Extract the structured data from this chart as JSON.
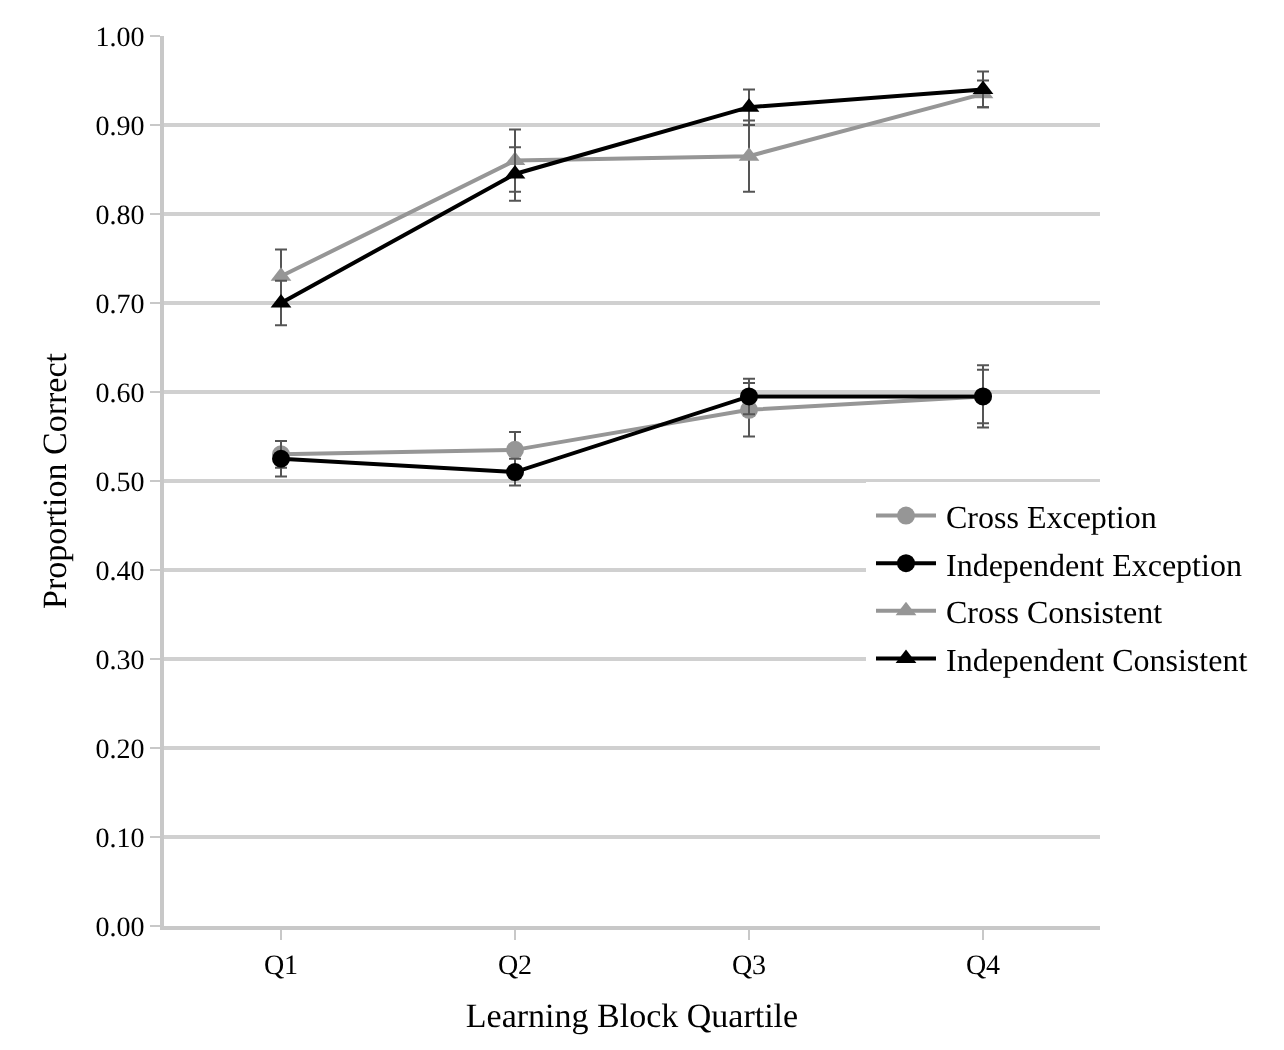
{
  "chart_data": {
    "type": "line",
    "xlabel": "Learning Block Quartile",
    "ylabel": "Proportion Correct",
    "categories": [
      "Q1",
      "Q2",
      "Q3",
      "Q4"
    ],
    "ylim": [
      0,
      1
    ],
    "yticks": [
      {
        "value": 0,
        "label": "0.00"
      },
      {
        "value": 0.1,
        "label": "0.10"
      },
      {
        "value": 0.2,
        "label": "0.20"
      },
      {
        "value": 0.3,
        "label": "0.30"
      },
      {
        "value": 0.4,
        "label": "0.40"
      },
      {
        "value": 0.5,
        "label": "0.50"
      },
      {
        "value": 0.6,
        "label": "0.60"
      },
      {
        "value": 0.7,
        "label": "0.70"
      },
      {
        "value": 0.8,
        "label": "0.80"
      },
      {
        "value": 0.9,
        "label": "0.90"
      },
      {
        "value": 1,
        "label": "1.00"
      }
    ],
    "grid": "y",
    "legend": "right",
    "line_style": "solid",
    "series": [
      {
        "name": "Cross Exception",
        "color": "#969696",
        "marker": "circle",
        "values": [
          0.53,
          0.535,
          0.58,
          0.595
        ],
        "errors": [
          0.015,
          0.02,
          0.03,
          0.03
        ]
      },
      {
        "name": "Independent Exception",
        "color": "#000000",
        "marker": "circle",
        "values": [
          0.525,
          0.51,
          0.595,
          0.595
        ],
        "errors": [
          0.02,
          0.015,
          0.02,
          0.035
        ]
      },
      {
        "name": "Cross Consistent",
        "color": "#969696",
        "marker": "triangle",
        "values": [
          0.73,
          0.86,
          0.865,
          0.935
        ],
        "errors": [
          0.03,
          0.035,
          0.04,
          0.015
        ]
      },
      {
        "name": "Independent Consistent",
        "color": "#000000",
        "marker": "triangle",
        "values": [
          0.7,
          0.845,
          0.92,
          0.94
        ],
        "errors": [
          0.025,
          0.03,
          0.02,
          0.02
        ]
      }
    ]
  }
}
